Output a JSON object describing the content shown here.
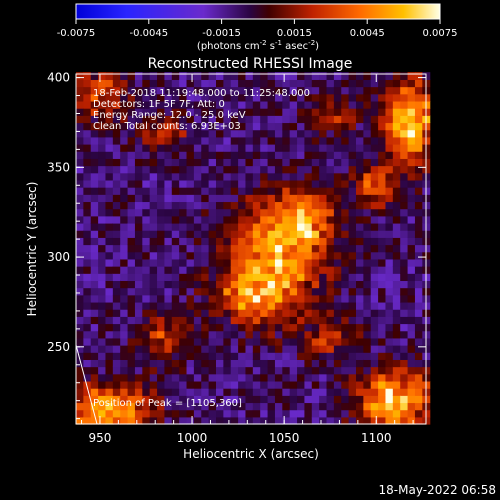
{
  "chart_data": {
    "type": "heatmap",
    "title": "Reconstructed RHESSI Image",
    "xlabel": "Heliocentric X (arcsec)",
    "ylabel": "Heliocentric Y (arcsec)",
    "xlim": [
      937,
      1127
    ],
    "ylim": [
      207,
      402
    ],
    "x_ticks": [
      950,
      1000,
      1050,
      1100
    ],
    "y_ticks": [
      250,
      300,
      350,
      400
    ],
    "colorbar": {
      "min": -0.0075,
      "max": 0.0075,
      "ticks": [
        "-0.0075",
        "-0.0045",
        "-0.0015",
        "0.0015",
        "0.0045",
        "0.0075"
      ],
      "unit_line1": "(photons cm",
      "unit_sup1": "-2",
      "unit_line2": " s",
      "unit_sup2": "-1",
      "unit_line3": " asec",
      "unit_sup3": "-2",
      "unit_line4": ")"
    },
    "grid": false,
    "pixel_size_arcsec": 4,
    "sources": [
      {
        "x": 1045,
        "y": 300,
        "peak": 0.0062,
        "sigma_x": 18,
        "sigma_y": 22
      },
      {
        "x": 1030,
        "y": 278,
        "peak": 0.0035,
        "sigma_x": 14,
        "sigma_y": 10
      },
      {
        "x": 1062,
        "y": 322,
        "peak": 0.004,
        "sigma_x": 12,
        "sigma_y": 12
      },
      {
        "x": 1118,
        "y": 375,
        "peak": 0.0075,
        "sigma_x": 10,
        "sigma_y": 16
      },
      {
        "x": 1100,
        "y": 340,
        "peak": 0.0048,
        "sigma_x": 8,
        "sigma_y": 8
      },
      {
        "x": 1110,
        "y": 220,
        "peak": 0.007,
        "sigma_x": 14,
        "sigma_y": 12
      },
      {
        "x": 955,
        "y": 215,
        "peak": 0.0068,
        "sigma_x": 16,
        "sigma_y": 10
      },
      {
        "x": 985,
        "y": 255,
        "peak": 0.0035,
        "sigma_x": 10,
        "sigma_y": 10
      },
      {
        "x": 950,
        "y": 390,
        "peak": 0.004,
        "sigma_x": 12,
        "sigma_y": 10
      },
      {
        "x": 985,
        "y": 370,
        "peak": 0.003,
        "sigma_x": 10,
        "sigma_y": 8
      },
      {
        "x": 1075,
        "y": 255,
        "peak": 0.003,
        "sigma_x": 10,
        "sigma_y": 8
      },
      {
        "x": 1075,
        "y": 380,
        "peak": 0.0028,
        "sigma_x": 10,
        "sigma_y": 8
      }
    ]
  },
  "annotation": {
    "line1": "18-Feb-2018 11:19:48.000 to 11:25:48.000",
    "line2": "Detectors: 1F 5F 7F, Att: 0",
    "line3": "Energy Range: 12.0 - 25.0 keV",
    "line4": "Clean     Total counts: 6.93E+03",
    "peak": "Position of Peak = [1105,360]"
  },
  "footer": {
    "timestamp": "18-May-2022 06:58"
  },
  "colors": {
    "background": "#000000",
    "text": "#ffffff"
  }
}
